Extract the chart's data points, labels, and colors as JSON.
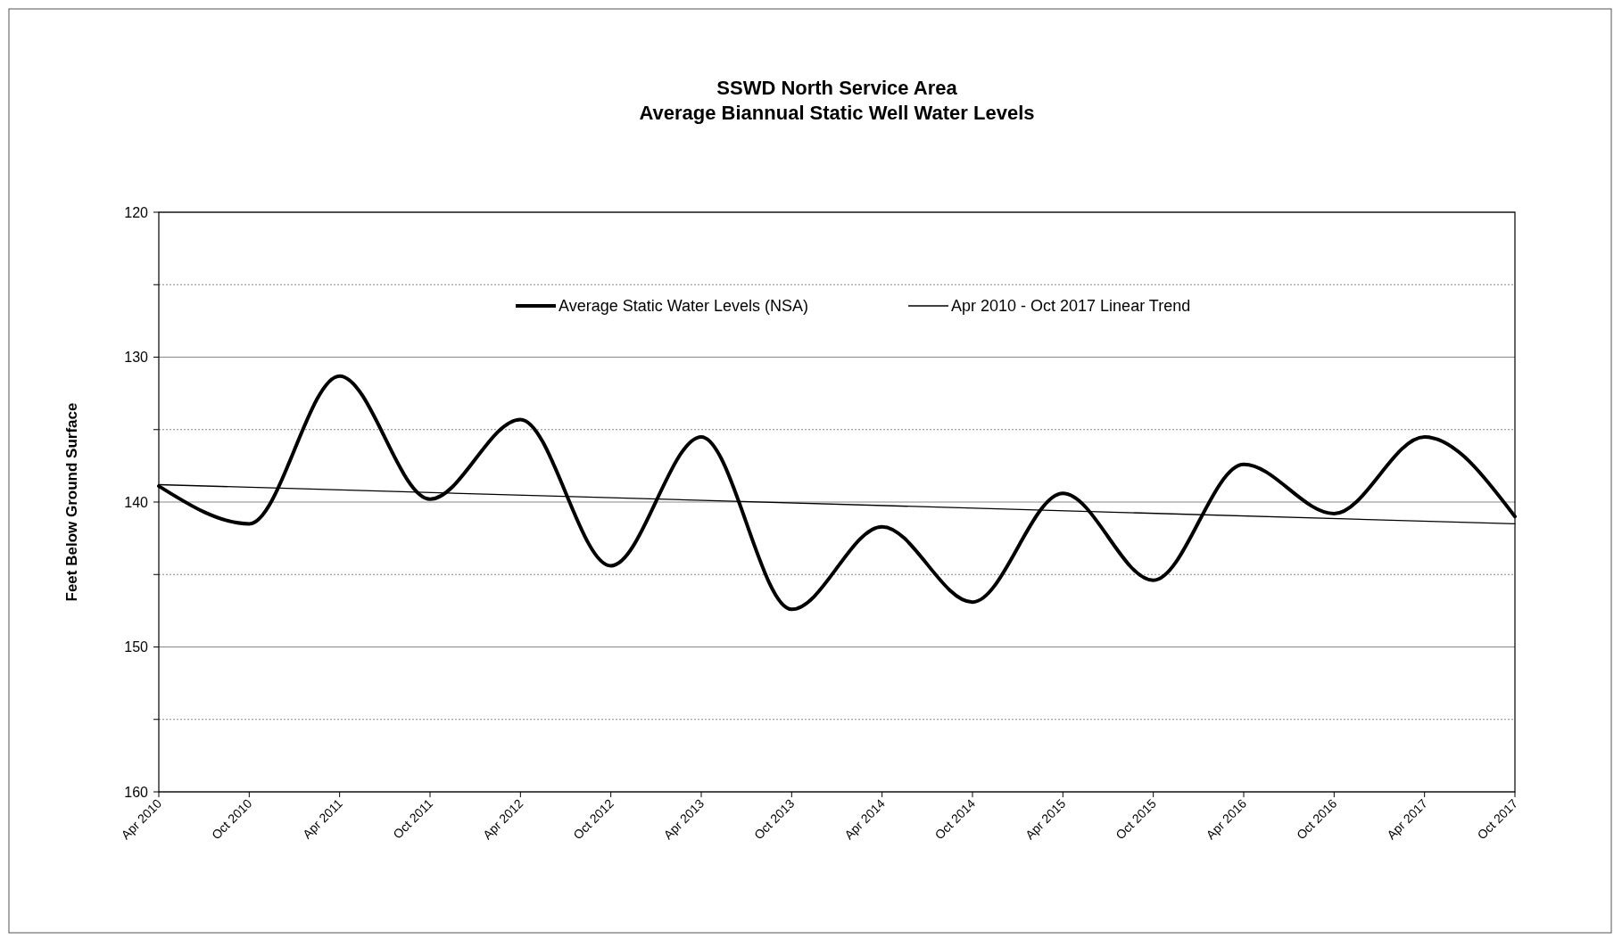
{
  "chart_data": {
    "type": "line",
    "title": "SSWD North Service Area\nAverage Biannual Static Well Water Levels",
    "ylabel": "Feet Below Ground Surface",
    "categories": [
      "Apr 2010",
      "Oct 2010",
      "Apr 2011",
      "Oct 2011",
      "Apr 2012",
      "Oct 2012",
      "Apr 2013",
      "Oct 2013",
      "Apr 2014",
      "Oct 2014",
      "Apr 2015",
      "Oct 2015",
      "Apr 2016",
      "Oct 2016",
      "Apr 2017",
      "Oct 2017"
    ],
    "series": [
      {
        "name": "Average Static Water Levels (NSA)",
        "color": "#000000",
        "values": [
          138.9,
          141.5,
          131.3,
          139.8,
          134.3,
          144.4,
          135.5,
          147.4,
          141.7,
          146.9,
          139.4,
          145.4,
          137.4,
          140.8,
          135.5,
          141.0
        ]
      },
      {
        "name": "Apr 2010 - Oct 2017 Linear Trend",
        "type": "line",
        "color": "#000000",
        "x": [
          "Apr 2010",
          "Oct 2017"
        ],
        "values": [
          138.8,
          141.5
        ]
      }
    ],
    "ylim": [
      160,
      120
    ],
    "yticks": [
      120,
      {
        "value": 125,
        "label": null
      },
      130,
      {
        "value": 135,
        "label": null
      },
      140,
      {
        "value": 145,
        "label": null
      },
      150,
      {
        "value": 155,
        "label": null
      },
      160
    ],
    "grid": "y",
    "legend": "top",
    "marker": "none",
    "line_style": "solid"
  }
}
